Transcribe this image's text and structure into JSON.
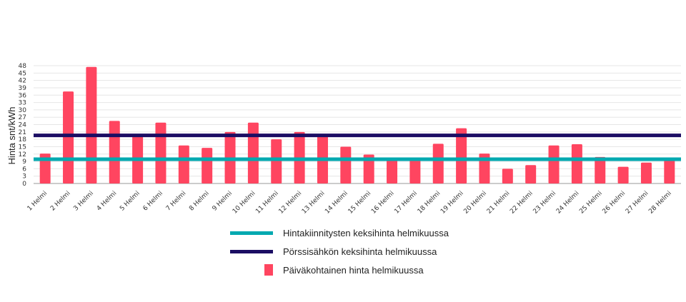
{
  "chart_data": {
    "type": "bar",
    "ylabel": "Hinta snt/kWh",
    "ylim": [
      0,
      48
    ],
    "yticks": [
      0,
      3,
      6,
      9,
      12,
      15,
      18,
      21,
      24,
      27,
      30,
      33,
      36,
      39,
      42,
      45,
      48
    ],
    "grid": true,
    "legend_position": "bottom",
    "categories": [
      "1 Helmi",
      "2 Helmi",
      "3 Helmi",
      "4 Helmi",
      "5 Helmi",
      "6 Helmi",
      "7 Helmi",
      "8 Helmi",
      "9 Helmi",
      "10 Helmi",
      "11 Helmi",
      "12 Helmi",
      "13 Helmi",
      "14 Helmi",
      "15 Helmi",
      "16 Helmi",
      "17 Helmi",
      "18 Helmi",
      "19 Helmi",
      "20 Helmi",
      "21 Helmi",
      "22 Helmi",
      "23 Helmi",
      "24 Helmi",
      "25 Helmi",
      "26 Helmi",
      "27 Helmi",
      "28 Helmi"
    ],
    "series": [
      {
        "name": "Päiväkohtainen hinta helmikuussa",
        "type": "bar",
        "color": "#ff4560",
        "values": [
          12.2,
          37.5,
          47.5,
          25.5,
          20.0,
          24.8,
          15.5,
          14.5,
          21.0,
          24.8,
          18.0,
          21.0,
          19.2,
          15.0,
          11.8,
          9.5,
          9.5,
          16.2,
          22.5,
          12.2,
          6.0,
          7.5,
          15.5,
          16.0,
          10.8,
          6.8,
          8.5,
          9.5
        ]
      },
      {
        "name": "Pörssisähkön keksihinta helmikuussa",
        "type": "line",
        "color": "#1b0d63",
        "value": 19.6
      },
      {
        "name": "Hintakiinnitysten keksihinta helmikuussa",
        "type": "line",
        "color": "#00a9b0",
        "value": 9.9
      }
    ]
  }
}
